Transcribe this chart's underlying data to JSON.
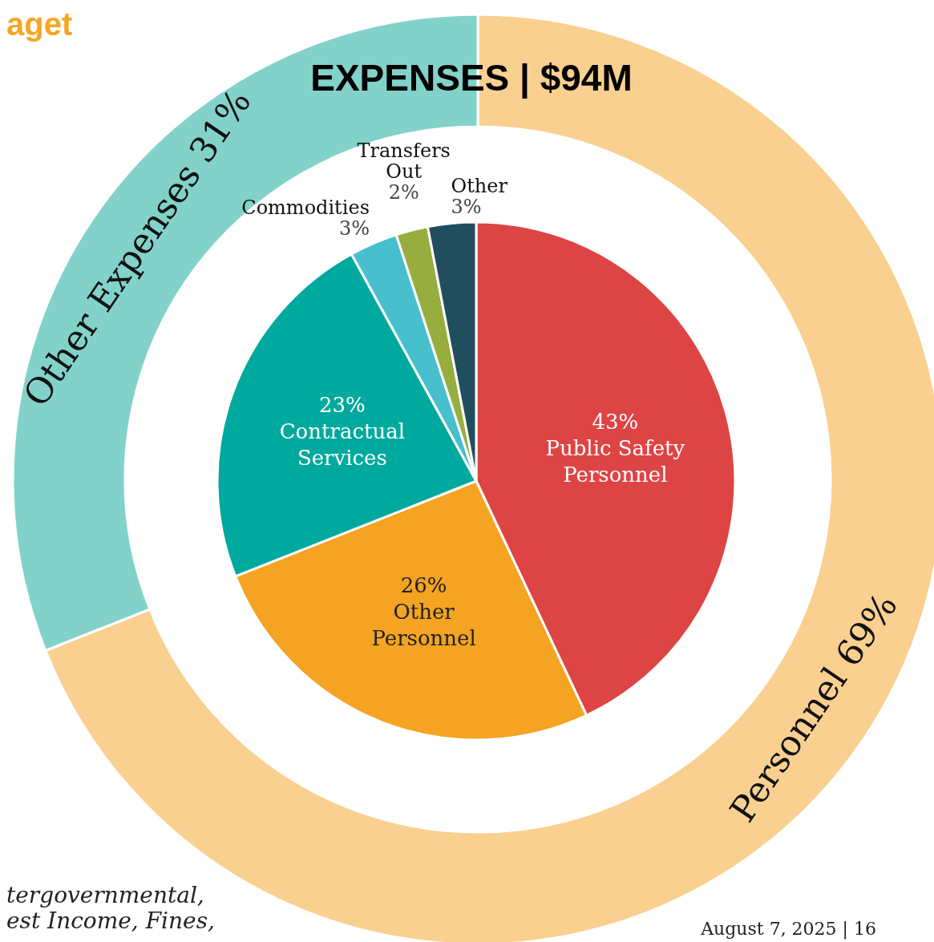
{
  "chart_data": [
    {
      "type": "donut",
      "title": "EXPENSES | $94M",
      "categories": [
        "Personnel",
        "Other Expenses"
      ],
      "values": [
        69,
        31
      ],
      "value_labels": [
        "69%",
        "31%"
      ],
      "colors": [
        "#f9d090",
        "#82d2ca"
      ],
      "legend": false,
      "annotations": [
        "aget",
        "tergovernmental,\nest Income, Fines,",
        "August 7, 2025 | 16"
      ]
    },
    {
      "type": "pie",
      "categories": [
        "Public Safety Personnel",
        "Other Personnel",
        "Contractual Services",
        "Commodities",
        "Transfers Out",
        "Other"
      ],
      "values": [
        43,
        26,
        23,
        3,
        2,
        3
      ],
      "value_labels": [
        "43%",
        "26%",
        "23%",
        "3%",
        "2%",
        "3%"
      ],
      "colors": [
        "#dd4444",
        "#f4a322",
        "#00a99d",
        "#47bfcc",
        "#97ad3f",
        "#214e5f"
      ],
      "legend": false
    }
  ]
}
